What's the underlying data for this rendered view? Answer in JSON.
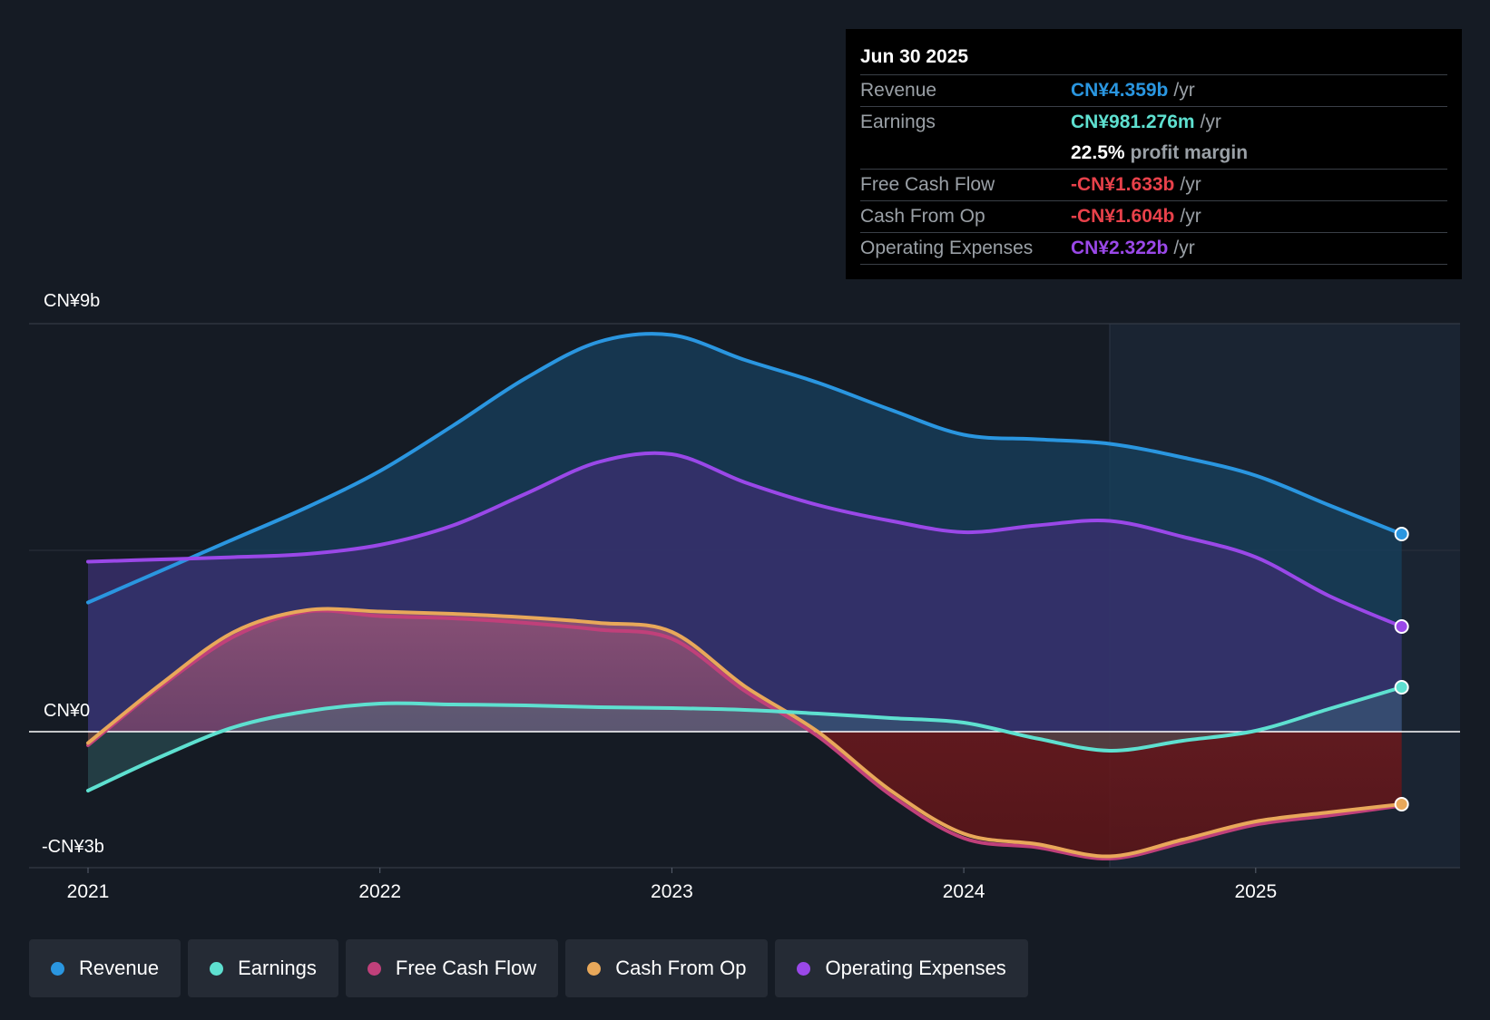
{
  "chart_data": {
    "type": "area",
    "title": "",
    "x_ticks": [
      "2021",
      "2022",
      "2023",
      "2024",
      "2025"
    ],
    "x": [
      2021.0,
      2021.25,
      2021.5,
      2021.75,
      2022.0,
      2022.25,
      2022.5,
      2022.75,
      2023.0,
      2023.25,
      2023.5,
      2023.75,
      2024.0,
      2024.25,
      2024.5,
      2024.75,
      2025.0,
      2025.25,
      2025.5
    ],
    "y_tick_labels": {
      "top": "CN¥9b",
      "zero": "CN¥0",
      "bottom": "-CN¥3b"
    },
    "ylim": [
      -3,
      9
    ],
    "highlight_start": 2024.5,
    "series": [
      {
        "name": "Revenue",
        "color": "#2a96e0",
        "values": [
          2.85,
          3.55,
          4.25,
          4.95,
          5.75,
          6.75,
          7.8,
          8.6,
          8.75,
          8.2,
          7.7,
          7.1,
          6.55,
          6.45,
          6.35,
          6.05,
          5.65,
          5.0,
          4.36
        ]
      },
      {
        "name": "Earnings",
        "color": "#5ee0d0",
        "values": [
          -1.3,
          -0.55,
          0.1,
          0.45,
          0.62,
          0.6,
          0.58,
          0.54,
          0.52,
          0.48,
          0.4,
          0.3,
          0.2,
          -0.15,
          -0.42,
          -0.2,
          0.02,
          0.5,
          0.98
        ]
      },
      {
        "name": "Free Cash Flow",
        "color": "#c0407a",
        "values": [
          -0.3,
          1.0,
          2.1,
          2.65,
          2.55,
          2.5,
          2.4,
          2.25,
          2.05,
          0.9,
          -0.1,
          -1.4,
          -2.35,
          -2.55,
          -2.8,
          -2.45,
          -2.05,
          -1.85,
          -1.63
        ]
      },
      {
        "name": "Cash From Op",
        "color": "#e8a85a",
        "values": [
          -0.25,
          1.05,
          2.2,
          2.68,
          2.65,
          2.6,
          2.52,
          2.4,
          2.2,
          1.0,
          0.0,
          -1.3,
          -2.25,
          -2.48,
          -2.75,
          -2.38,
          -1.98,
          -1.78,
          -1.6
        ]
      },
      {
        "name": "Operating Expenses",
        "color": "#9a48e8",
        "values": [
          3.75,
          3.8,
          3.85,
          3.92,
          4.12,
          4.55,
          5.25,
          5.95,
          6.12,
          5.5,
          5.0,
          4.65,
          4.4,
          4.55,
          4.65,
          4.3,
          3.85,
          3.0,
          2.32
        ]
      }
    ]
  },
  "tooltip": {
    "date": "Jun 30 2025",
    "revenue_label": "Revenue",
    "revenue_value": "CN¥4.359b",
    "earnings_label": "Earnings",
    "earnings_value": "CN¥981.276m",
    "margin_value": "22.5%",
    "margin_text": "profit margin",
    "fcf_label": "Free Cash Flow",
    "fcf_value": "-CN¥1.633b",
    "cfo_label": "Cash From Op",
    "cfo_value": "-CN¥1.604b",
    "opex_label": "Operating Expenses",
    "opex_value": "CN¥2.322b",
    "unit": "/yr"
  },
  "colors": {
    "revenue": "#2a96e0",
    "earnings": "#5ee0d0",
    "fcf": "#c0407a",
    "cfo": "#e8a85a",
    "opex": "#9a48e8",
    "negative": "#e8414a"
  },
  "legend": {
    "items": [
      {
        "label": "Revenue",
        "color": "#2a96e0"
      },
      {
        "label": "Earnings",
        "color": "#5ee0d0"
      },
      {
        "label": "Free Cash Flow",
        "color": "#c0407a"
      },
      {
        "label": "Cash From Op",
        "color": "#e8a85a"
      },
      {
        "label": "Operating Expenses",
        "color": "#9a48e8"
      }
    ]
  }
}
